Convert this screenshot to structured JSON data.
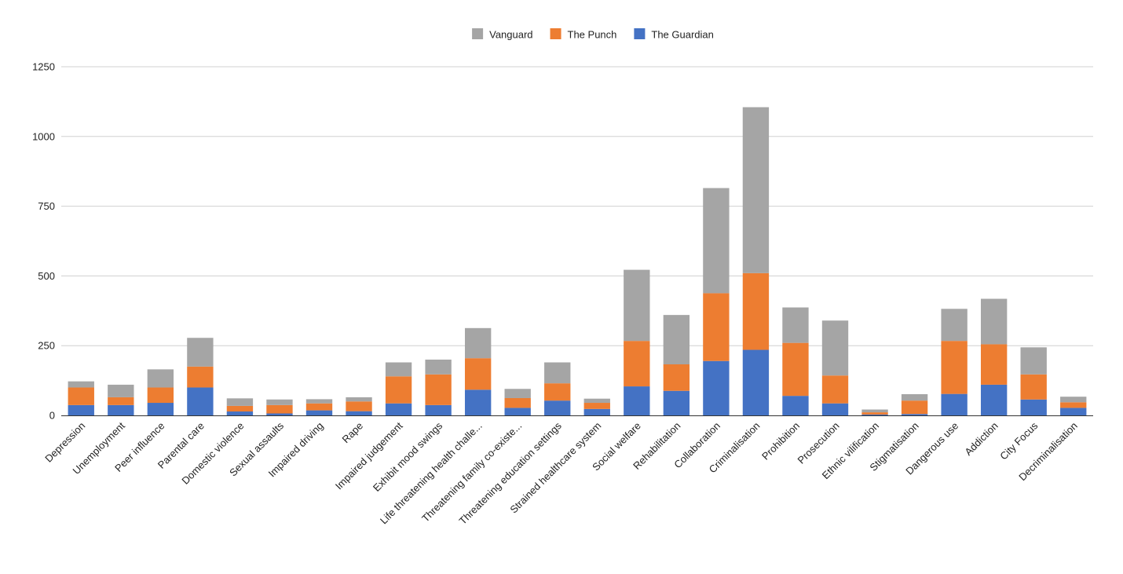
{
  "chart_data": {
    "type": "bar",
    "stacked": true,
    "title": "",
    "xlabel": "",
    "ylabel": "",
    "ylim": [
      0,
      1250
    ],
    "yticks": [
      0,
      250,
      500,
      750,
      1000,
      1250
    ],
    "grid": true,
    "legend_position": "top-center",
    "categories": [
      "Depression",
      "Unemployment",
      "Peer influence",
      "Parental care",
      "Domestic violence",
      "Sexual assaults",
      "Impaired driving",
      "Rape",
      "Impaired judgement",
      "Exhibit mood swings",
      "Life threatening health challe...",
      "Threatening family co-existe...",
      "Threatening education settings",
      "Strained healthcare system",
      "Social welfare",
      "Rehabilitation",
      "Collaboration",
      "Criminalisation",
      "Prohibition",
      "Prosecution",
      "Ethnic vilification",
      "Stigmatisation",
      "Dangerous use",
      "Addiction",
      "City Focus",
      "Decriminalisation"
    ],
    "series": [
      {
        "name": "The Guardian",
        "color": "#4472c4",
        "values": [
          37,
          37,
          45,
          100,
          14,
          7,
          18,
          15,
          43,
          37,
          92,
          27,
          53,
          23,
          104,
          88,
          195,
          235,
          70,
          43,
          3,
          5,
          77,
          110,
          57,
          27
        ]
      },
      {
        "name": "The Punch",
        "color": "#ed7d31",
        "values": [
          63,
          28,
          55,
          75,
          20,
          30,
          25,
          35,
          97,
          110,
          113,
          35,
          62,
          22,
          163,
          95,
          243,
          275,
          190,
          100,
          8,
          48,
          190,
          145,
          90,
          20
        ]
      },
      {
        "name": "Vanguard",
        "color": "#a5a5a5",
        "values": [
          22,
          45,
          65,
          103,
          27,
          20,
          15,
          15,
          50,
          53,
          108,
          33,
          75,
          15,
          255,
          177,
          377,
          595,
          127,
          197,
          10,
          23,
          115,
          163,
          97,
          20
        ]
      }
    ],
    "legend_order": [
      "Vanguard",
      "The Punch",
      "The Guardian"
    ]
  }
}
